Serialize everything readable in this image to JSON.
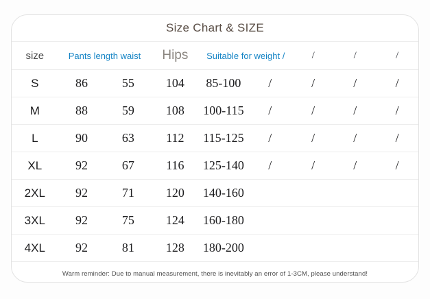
{
  "card": {
    "title": "Size Chart & SIZE",
    "accent_blue": "#1584c5",
    "title_color": "#5a4e46"
  },
  "table": {
    "header": {
      "size": "size",
      "pants_length_waist": "Pants length waist",
      "hips": "Hips",
      "suitable_weight": "Suitable for weight /",
      "slash1": "/",
      "slash2": "/",
      "slash3": "/"
    },
    "rows": [
      {
        "cells": [
          "S",
          "86",
          "55",
          "104",
          "85-100",
          "/",
          "/",
          "/",
          "/"
        ]
      },
      {
        "cells": [
          "M",
          "88",
          "59",
          "108",
          "100-115",
          "/",
          "/",
          "/",
          "/"
        ]
      },
      {
        "cells": [
          "L",
          "90",
          "63",
          "112",
          "115-125",
          "/",
          "/",
          "/",
          "/"
        ]
      },
      {
        "cells": [
          "XL",
          "92",
          "67",
          "116",
          "125-140",
          "/",
          "/",
          "/",
          "/"
        ]
      },
      {
        "cells": [
          "2XL",
          "92",
          "71",
          "120",
          "140-160",
          "",
          "",
          "",
          ""
        ]
      },
      {
        "cells": [
          "3XL",
          "92",
          "75",
          "124",
          "160-180",
          "",
          "",
          "",
          ""
        ]
      },
      {
        "cells": [
          "4XL",
          "92",
          "81",
          "128",
          "180-200",
          "",
          "",
          "",
          ""
        ]
      }
    ]
  },
  "footer": {
    "reminder": "Warm reminder: Due to manual measurement, there is inevitably an error of 1-3CM, please understand!"
  },
  "chart_data": {
    "type": "table",
    "title": "Size Chart & SIZE",
    "columns": [
      "size",
      "Pants length",
      "waist",
      "Hips",
      "Suitable for weight",
      "/",
      "/",
      "/",
      "/"
    ],
    "rows": [
      [
        "S",
        86,
        55,
        104,
        "85-100",
        "/",
        "/",
        "/",
        "/"
      ],
      [
        "M",
        88,
        59,
        108,
        "100-115",
        "/",
        "/",
        "/",
        "/"
      ],
      [
        "L",
        90,
        63,
        112,
        "115-125",
        "/",
        "/",
        "/",
        "/"
      ],
      [
        "XL",
        92,
        67,
        116,
        "125-140",
        "/",
        "/",
        "/",
        "/"
      ],
      [
        "2XL",
        92,
        71,
        120,
        "140-160",
        "",
        "",
        "",
        ""
      ],
      [
        "3XL",
        92,
        75,
        124,
        "160-180",
        "",
        "",
        "",
        ""
      ],
      [
        "4XL",
        92,
        81,
        128,
        "180-200",
        "",
        "",
        "",
        ""
      ]
    ],
    "note": "Warm reminder: Due to manual measurement, there is inevitably an error of 1-3CM, please understand!"
  }
}
